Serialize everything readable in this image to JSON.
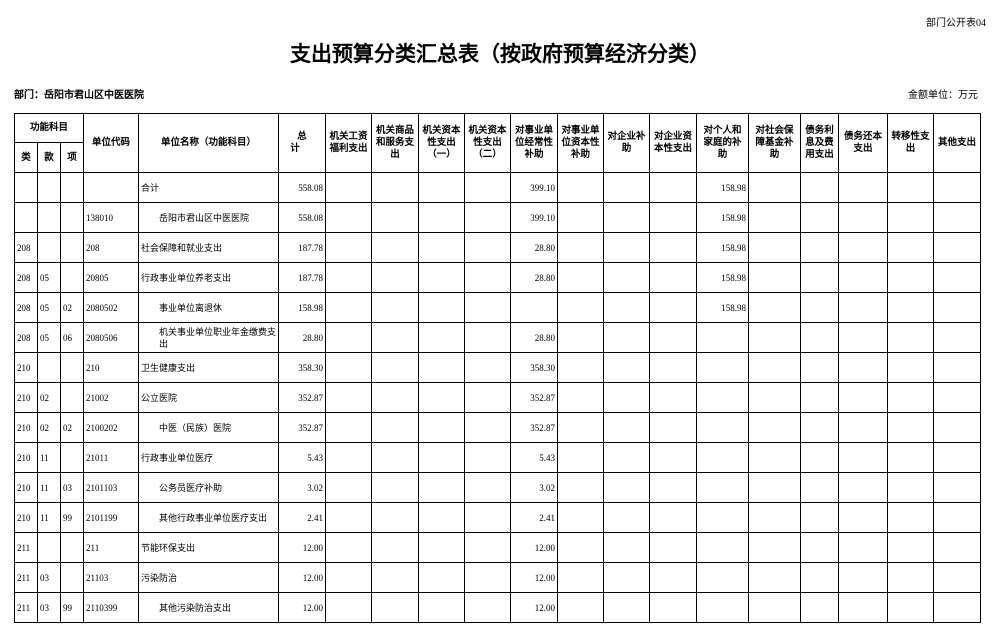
{
  "header": {
    "doc_label": "部门公开表04",
    "title": "支出预算分类汇总表（按政府预算经济分类）",
    "department": "部门：岳阳市君山区中医医院",
    "unit": "金额单位：万元"
  },
  "table": {
    "group_header": "功能科目",
    "columns": [
      "类",
      "款",
      "项",
      "单位代码",
      "单位名称（功能科目）",
      "总计",
      "机关工资福利支出",
      "机关商品和服务支出",
      "机关资本性支出（一）",
      "机关资本性支出（二）",
      "对事业单位经常性补助",
      "对事业单位资本性补助",
      "对企业补助",
      "对企业资本性支出",
      "对个人和家庭的补助",
      "对社会保障基金补助",
      "债务利息及费用支出",
      "债务还本支出",
      "转移性支出",
      "其他支出"
    ],
    "rows": [
      [
        null,
        null,
        null,
        null,
        "合计",
        "558.08",
        null,
        null,
        null,
        null,
        "399.10",
        null,
        null,
        null,
        "158.98",
        null,
        null,
        null,
        null,
        null
      ],
      [
        null,
        null,
        null,
        "138010",
        "岳阳市君山区中医医院",
        "558.08",
        null,
        null,
        null,
        null,
        "399.10",
        null,
        null,
        null,
        "158.98",
        null,
        null,
        null,
        null,
        null
      ],
      [
        "208",
        null,
        null,
        "208",
        "社会保障和就业支出",
        "187.78",
        null,
        null,
        null,
        null,
        "28.80",
        null,
        null,
        null,
        "158.98",
        null,
        null,
        null,
        null,
        null
      ],
      [
        "208",
        "05",
        null,
        "20805",
        "行政事业单位养老支出",
        "187.78",
        null,
        null,
        null,
        null,
        "28.80",
        null,
        null,
        null,
        "158.98",
        null,
        null,
        null,
        null,
        null
      ],
      [
        "208",
        "05",
        "02",
        "2080502",
        "事业单位离退休",
        "158.98",
        null,
        null,
        null,
        null,
        null,
        null,
        null,
        null,
        "158.98",
        null,
        null,
        null,
        null,
        null
      ],
      [
        "208",
        "05",
        "06",
        "2080506",
        "机关事业单位职业年金缴费支出",
        "28.80",
        null,
        null,
        null,
        null,
        "28.80",
        null,
        null,
        null,
        null,
        null,
        null,
        null,
        null,
        null
      ],
      [
        "210",
        null,
        null,
        "210",
        "卫生健康支出",
        "358.30",
        null,
        null,
        null,
        null,
        "358.30",
        null,
        null,
        null,
        null,
        null,
        null,
        null,
        null,
        null
      ],
      [
        "210",
        "02",
        null,
        "21002",
        "公立医院",
        "352.87",
        null,
        null,
        null,
        null,
        "352.87",
        null,
        null,
        null,
        null,
        null,
        null,
        null,
        null,
        null
      ],
      [
        "210",
        "02",
        "02",
        "2100202",
        "中医（民族）医院",
        "352.87",
        null,
        null,
        null,
        null,
        "352.87",
        null,
        null,
        null,
        null,
        null,
        null,
        null,
        null,
        null
      ],
      [
        "210",
        "11",
        null,
        "21011",
        "行政事业单位医疗",
        "5.43",
        null,
        null,
        null,
        null,
        "5.43",
        null,
        null,
        null,
        null,
        null,
        null,
        null,
        null,
        null
      ],
      [
        "210",
        "11",
        "03",
        "2101103",
        "公务员医疗补助",
        "3.02",
        null,
        null,
        null,
        null,
        "3.02",
        null,
        null,
        null,
        null,
        null,
        null,
        null,
        null,
        null
      ],
      [
        "210",
        "11",
        "99",
        "2101199",
        "其他行政事业单位医疗支出",
        "2.41",
        null,
        null,
        null,
        null,
        "2.41",
        null,
        null,
        null,
        null,
        null,
        null,
        null,
        null,
        null
      ],
      [
        "211",
        null,
        null,
        "211",
        "节能环保支出",
        "12.00",
        null,
        null,
        null,
        null,
        "12.00",
        null,
        null,
        null,
        null,
        null,
        null,
        null,
        null,
        null
      ],
      [
        "211",
        "03",
        null,
        "21103",
        "污染防治",
        "12.00",
        null,
        null,
        null,
        null,
        "12.00",
        null,
        null,
        null,
        null,
        null,
        null,
        null,
        null,
        null
      ],
      [
        "211",
        "03",
        "99",
        "2110399",
        "其他污染防治支出",
        "12.00",
        null,
        null,
        null,
        null,
        "12.00",
        null,
        null,
        null,
        null,
        null,
        null,
        null,
        null,
        null
      ]
    ]
  }
}
